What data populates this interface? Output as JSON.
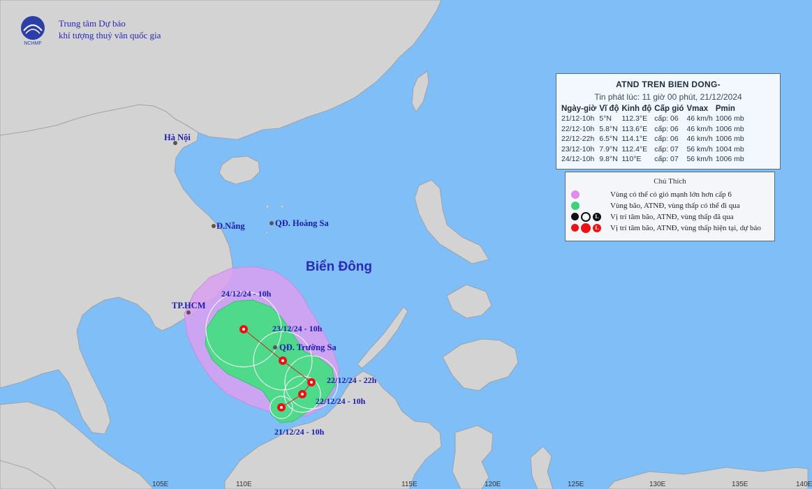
{
  "agency": {
    "line1": "Trung tâm Dự báo",
    "line2": "khí tượng thuỷ văn quốc gia",
    "logo_text": "NCHMF"
  },
  "info": {
    "title": "ATND TREN BIEN DONG-",
    "issued": "Tin phát lúc: 11 giờ 00 phút, 21/12/2024",
    "headers": [
      "Ngày-giờ",
      "Vĩ độ",
      "Kinh độ",
      "Cấp gió",
      "Vmax",
      "Pmin"
    ],
    "rows": [
      [
        "21/12-10h",
        "5°N",
        "112.3°E",
        "cấp: 06",
        "46 km/h",
        "1006 mb"
      ],
      [
        "22/12-10h",
        "5.8°N",
        "113.6°E",
        "cấp: 06",
        "46 km/h",
        "1006 mb"
      ],
      [
        "22/12-22h",
        "6.5°N",
        "114.1°E",
        "cấp: 06",
        "46 km/h",
        "1006 mb"
      ],
      [
        "23/12-10h",
        "7.9°N",
        "112.4°E",
        "cấp: 07",
        "56 km/h",
        "1004 mb"
      ],
      [
        "24/12-10h",
        "9.8°N",
        "110°E",
        "cấp: 07",
        "56 km/h",
        "1006 mb"
      ]
    ]
  },
  "legend": {
    "title": "Chú Thích",
    "items": [
      {
        "text": "Vùng có thể có gió mạnh lớn hơn cấp 6",
        "icon": "purple-dot-icon",
        "color": "#e08af0"
      },
      {
        "text": "Vùng bão, ATNĐ, vùng thấp có thể đi qua",
        "icon": "green-dot-icon",
        "color": "#3dd17a"
      },
      {
        "text": "Vị trí tâm bão, ATNĐ, vùng thấp đã qua",
        "icon": "past-center-icons",
        "color": "#000000"
      },
      {
        "text": "Vị trí tâm bão, ATNĐ, vùng thấp hiện tại, dự báo",
        "icon": "forecast-center-icons",
        "color": "#ee1111"
      }
    ],
    "symbol_letter": "L"
  },
  "places": {
    "hanoi": "Hà Nội",
    "danang": "Đ.Nẵng",
    "hoangsa": "QĐ. Hoàng Sa",
    "hcm": "TP.HCM",
    "truongsa": "QĐ. Trường Sa",
    "sea": "Biển Đông"
  },
  "track_labels": {
    "t1": "24/12/24 - 10h",
    "t2": "23/12/24 - 10h",
    "t3": "22/12/24 - 22h",
    "t4": "22/12/24 - 10h",
    "t5": "21/12/24 - 10h"
  },
  "longitudes": [
    "105E",
    "110E",
    "115E",
    "120E",
    "125E",
    "130E",
    "135E",
    "140E"
  ],
  "colors": {
    "sea": "#7fbef7",
    "land": "#d3d3d3",
    "warning_zone": "#d9a0f0",
    "track_zone": "#4fd98a",
    "center": "#ee1111"
  }
}
